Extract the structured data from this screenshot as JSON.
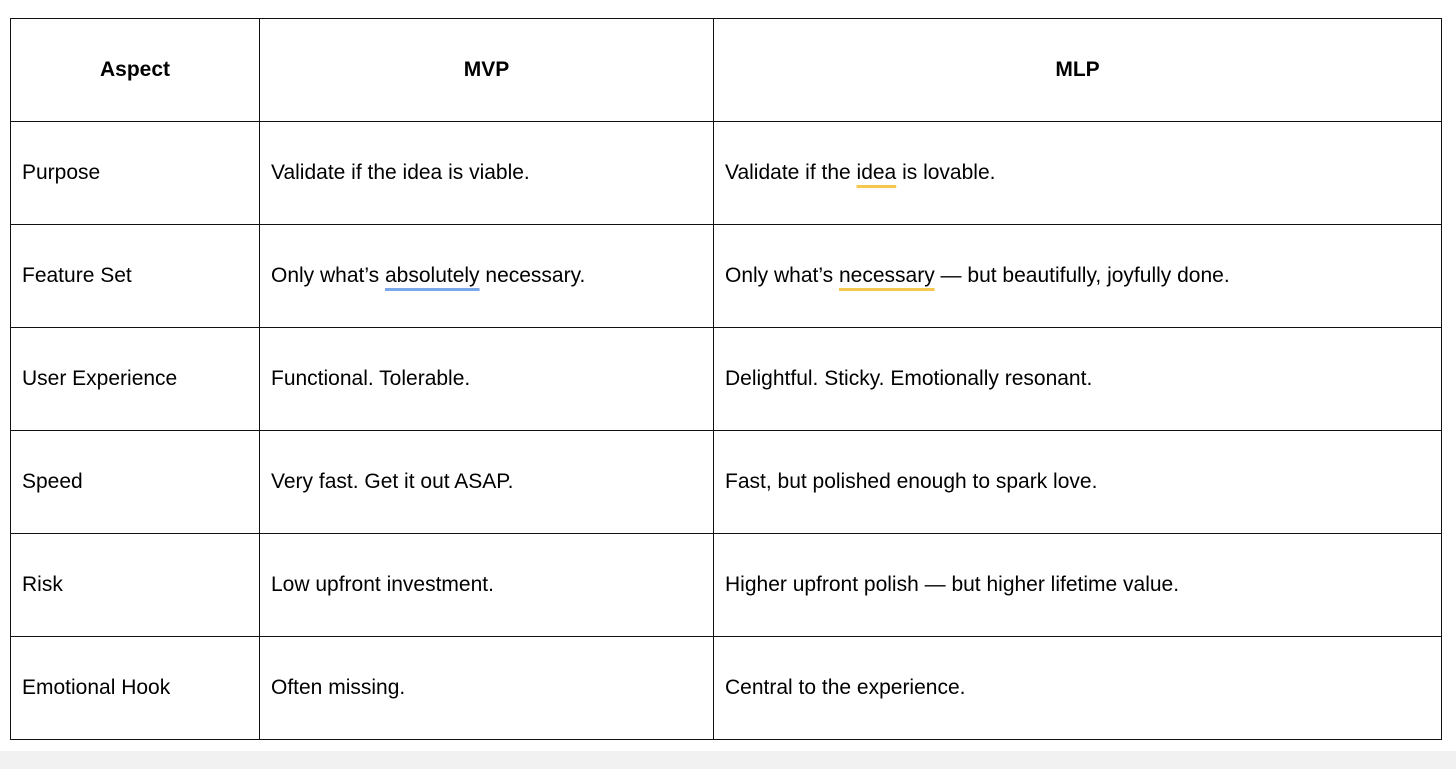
{
  "table": {
    "headers": [
      "Aspect",
      "MVP",
      "MLP"
    ],
    "rows": [
      {
        "aspect": "Purpose",
        "mvp": "Validate if the idea is viable.",
        "mlp_pre": "Validate if the ",
        "mlp_mark": "idea",
        "mlp_post": " is lovable."
      },
      {
        "aspect": "Feature Set",
        "mvp_pre": "Only what’s ",
        "mvp_mark": "absolutely",
        "mvp_post": " necessary.",
        "mlp_pre": "Only what’s ",
        "mlp_mark": "necessary",
        "mlp_post": " — but beautifully, joyfully done."
      },
      {
        "aspect": "User Experience",
        "mvp": "Functional. Tolerable.",
        "mlp": "Delightful. Sticky. Emotionally resonant."
      },
      {
        "aspect": "Speed",
        "mvp": "Very fast. Get it out ASAP.",
        "mlp": "Fast, but polished enough to spark love."
      },
      {
        "aspect": "Risk",
        "mvp": "Low upfront investment.",
        "mlp": "Higher upfront polish — but higher lifetime value."
      },
      {
        "aspect": "Emotional Hook",
        "mvp": "Often missing.",
        "mlp": "Central to the experience."
      }
    ]
  },
  "underline_colors": {
    "spelling": "#7aa7e8",
    "suggestion": "#f4c84e"
  }
}
